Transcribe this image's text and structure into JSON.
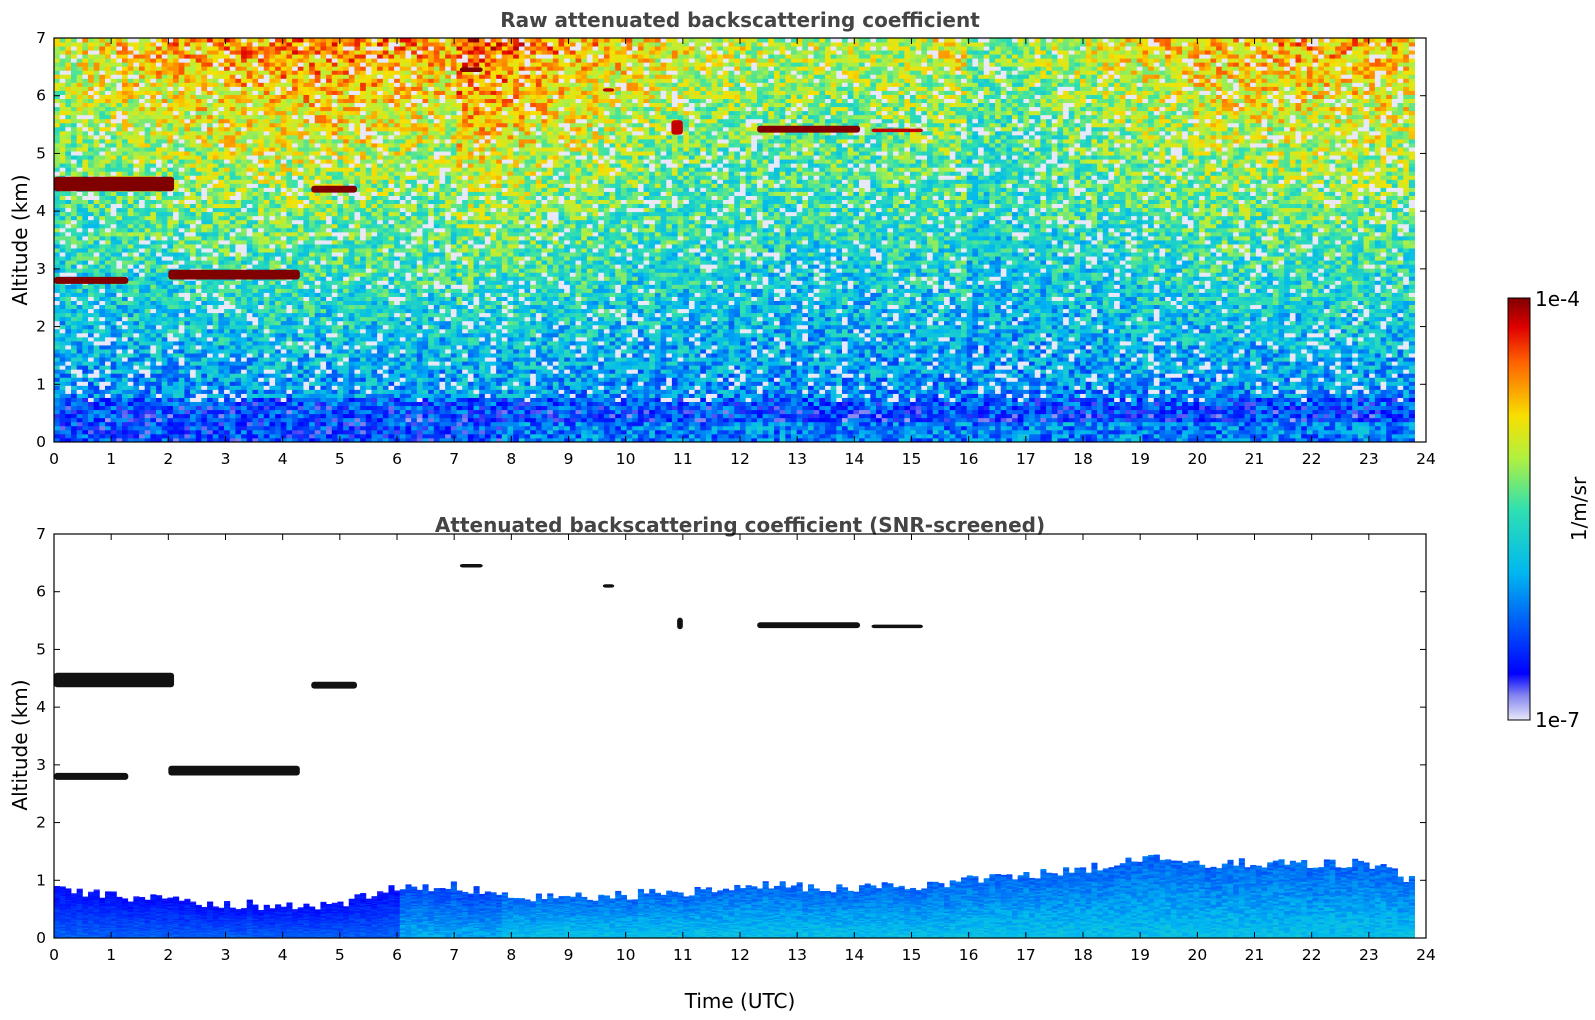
{
  "chart_data": [
    {
      "type": "heatmap",
      "title": "Raw attenuated backscattering coefficient",
      "xlabel": "",
      "ylabel": "Altitude (km)",
      "xlim": [
        0,
        24
      ],
      "ylim": [
        0,
        7
      ],
      "xticks": [
        "0",
        "1",
        "2",
        "3",
        "4",
        "5",
        "6",
        "7",
        "8",
        "9",
        "10",
        "11",
        "12",
        "13",
        "14",
        "15",
        "16",
        "17",
        "18",
        "19",
        "20",
        "21",
        "22",
        "23",
        "24"
      ],
      "yticks": [
        "0",
        "1",
        "2",
        "3",
        "4",
        "5",
        "6",
        "7"
      ],
      "data_extent_x": [
        0,
        23.8
      ],
      "cloud_layers": [
        {
          "x0": 0.0,
          "x1": 2.1,
          "y": 4.47,
          "thickness": 0.25,
          "level": 1.0
        },
        {
          "x0": 4.5,
          "x1": 5.3,
          "y": 4.38,
          "thickness": 0.12,
          "level": 1.0
        },
        {
          "x0": 0.0,
          "x1": 1.3,
          "y": 2.8,
          "thickness": 0.12,
          "level": 1.0
        },
        {
          "x0": 2.0,
          "x1": 4.3,
          "y": 2.9,
          "thickness": 0.17,
          "level": 1.0
        },
        {
          "x0": 7.1,
          "x1": 7.5,
          "y": 6.45,
          "thickness": 0.08,
          "level": 1.0
        },
        {
          "x0": 12.3,
          "x1": 14.1,
          "y": 5.42,
          "thickness": 0.12,
          "level": 1.0
        },
        {
          "x0": 14.3,
          "x1": 15.2,
          "y": 5.4,
          "thickness": 0.06,
          "level": 0.95
        },
        {
          "x0": 9.6,
          "x1": 9.8,
          "y": 6.1,
          "thickness": 0.06,
          "level": 0.95
        },
        {
          "x0": 10.8,
          "x1": 11.0,
          "y": 5.45,
          "thickness": 0.25,
          "level": 0.95
        }
      ]
    },
    {
      "type": "heatmap",
      "title": "Attenuated backscattering coefficient (SNR-screened)",
      "xlabel": "Time (UTC)",
      "ylabel": "Altitude (km)",
      "xlim": [
        0,
        24
      ],
      "ylim": [
        0,
        7
      ],
      "xticks": [
        "0",
        "1",
        "2",
        "3",
        "4",
        "5",
        "6",
        "7",
        "8",
        "9",
        "10",
        "11",
        "12",
        "13",
        "14",
        "15",
        "16",
        "17",
        "18",
        "19",
        "20",
        "21",
        "22",
        "23",
        "24"
      ],
      "yticks": [
        "0",
        "1",
        "2",
        "3",
        "4",
        "5",
        "6",
        "7"
      ],
      "data_extent_x": [
        0,
        23.8
      ],
      "boundary_layer_top": {
        "x": [
          0,
          1,
          2,
          3,
          4,
          5,
          6,
          7,
          8,
          9,
          10,
          11,
          12,
          13,
          14,
          15,
          16,
          17,
          18,
          19,
          20,
          21,
          22,
          23,
          23.8
        ],
        "y": [
          0.85,
          0.75,
          0.65,
          0.6,
          0.55,
          0.6,
          0.85,
          0.9,
          0.7,
          0.7,
          0.75,
          0.8,
          0.9,
          0.9,
          0.85,
          0.9,
          1.0,
          1.1,
          1.2,
          1.4,
          1.3,
          1.3,
          1.3,
          1.3,
          1.0
        ]
      },
      "cloud_layers": [
        {
          "x0": 0.0,
          "x1": 2.1,
          "y": 4.47,
          "thickness": 0.25
        },
        {
          "x0": 4.5,
          "x1": 5.3,
          "y": 4.38,
          "thickness": 0.12
        },
        {
          "x0": 0.0,
          "x1": 1.3,
          "y": 2.8,
          "thickness": 0.12
        },
        {
          "x0": 2.0,
          "x1": 4.3,
          "y": 2.9,
          "thickness": 0.17
        },
        {
          "x0": 7.1,
          "x1": 7.5,
          "y": 6.45,
          "thickness": 0.06
        },
        {
          "x0": 12.3,
          "x1": 14.1,
          "y": 5.42,
          "thickness": 0.1
        },
        {
          "x0": 14.3,
          "x1": 15.2,
          "y": 5.4,
          "thickness": 0.06
        },
        {
          "x0": 9.6,
          "x1": 9.8,
          "y": 6.1,
          "thickness": 0.06
        },
        {
          "x0": 10.9,
          "x1": 11.0,
          "y": 5.45,
          "thickness": 0.2
        }
      ]
    }
  ],
  "colorbar": {
    "label": "1/m/sr",
    "max_label": "1e-4",
    "min_label": "1e-7",
    "colormap": "jet",
    "scale": "log"
  }
}
